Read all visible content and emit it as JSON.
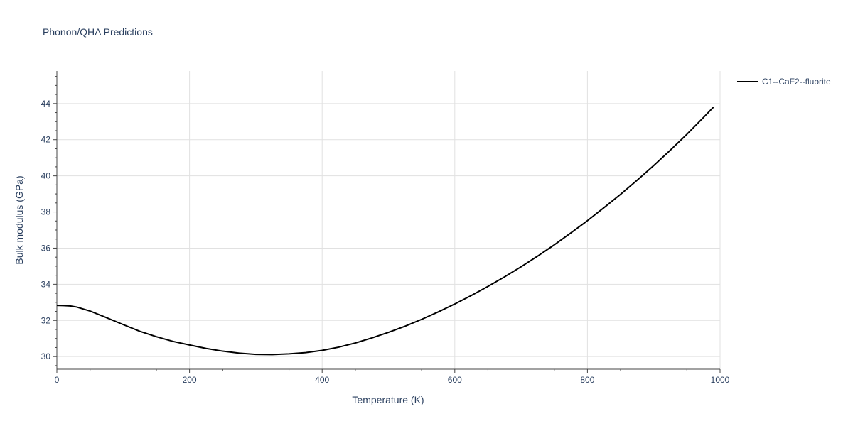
{
  "chart_data": {
    "type": "line",
    "title": "Phonon/QHA Predictions",
    "xlabel": "Temperature (K)",
    "ylabel": "Bulk modulus (GPa)",
    "xlim": [
      0,
      1000
    ],
    "ylim": [
      29.3,
      45.8
    ],
    "x_ticks": [
      0,
      200,
      400,
      600,
      800,
      1000
    ],
    "y_ticks": [
      30,
      32,
      34,
      36,
      38,
      40,
      42,
      44
    ],
    "grid": true,
    "legend_position": "top-right-outside",
    "series": [
      {
        "name": "C1--CaF2--fluorite",
        "color": "#000000",
        "x": [
          0,
          10,
          20,
          30,
          50,
          75,
          100,
          125,
          150,
          175,
          200,
          225,
          250,
          275,
          300,
          325,
          350,
          375,
          400,
          425,
          450,
          475,
          500,
          525,
          550,
          575,
          600,
          625,
          650,
          675,
          700,
          725,
          750,
          775,
          800,
          825,
          850,
          875,
          900,
          925,
          950,
          975,
          990
        ],
        "y": [
          32.83,
          32.82,
          32.8,
          32.74,
          32.52,
          32.15,
          31.77,
          31.4,
          31.1,
          30.84,
          30.64,
          30.45,
          30.3,
          30.19,
          30.12,
          30.11,
          30.15,
          30.22,
          30.34,
          30.52,
          30.75,
          31.03,
          31.34,
          31.68,
          32.06,
          32.47,
          32.91,
          33.38,
          33.88,
          34.41,
          34.97,
          35.56,
          36.18,
          36.84,
          37.52,
          38.24,
          38.98,
          39.76,
          40.57,
          41.42,
          42.3,
          43.23,
          43.8
        ]
      }
    ]
  }
}
